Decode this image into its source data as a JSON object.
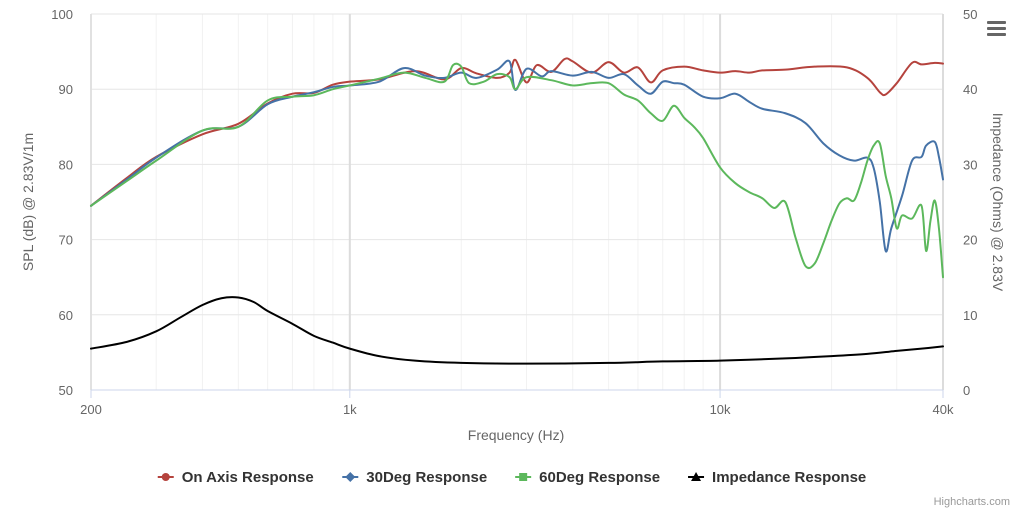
{
  "chart_data": {
    "type": "line",
    "xlabel": "Frequency (Hz)",
    "ylabel": "SPL (dB) @ 2.83V/1m",
    "y2label": "Impedance (Ohms) @ 2.83V",
    "x_scale": "log",
    "xlim": [
      200,
      40000
    ],
    "ylim": [
      50,
      100
    ],
    "y2lim": [
      0,
      50
    ],
    "x_ticks": [
      200,
      1000,
      10000,
      40000
    ],
    "x_tick_labels": [
      "200",
      "1k",
      "10k",
      "40k"
    ],
    "y_ticks": [
      50,
      60,
      70,
      80,
      90,
      100
    ],
    "y2_ticks": [
      0,
      10,
      20,
      30,
      40,
      50
    ],
    "grid": true,
    "legend_position": "bottom-center",
    "credits": "Highcharts.com",
    "series": [
      {
        "name": "On Axis Response",
        "color": "#b5433d",
        "marker": "circle",
        "axis": "left",
        "points": [
          [
            200,
            74.5
          ],
          [
            250,
            78.2
          ],
          [
            300,
            81
          ],
          [
            400,
            84
          ],
          [
            500,
            85.4
          ],
          [
            600,
            88.1
          ],
          [
            700,
            89.4
          ],
          [
            800,
            89.5
          ],
          [
            900,
            90.6
          ],
          [
            1000,
            91
          ],
          [
            1200,
            91.3
          ],
          [
            1500,
            92.4
          ],
          [
            1800,
            91.3
          ],
          [
            2000,
            92.8
          ],
          [
            2200,
            92.1
          ],
          [
            2500,
            91.5
          ],
          [
            2700,
            92.2
          ],
          [
            2800,
            93.9
          ],
          [
            3000,
            90.9
          ],
          [
            3200,
            93.2
          ],
          [
            3500,
            92.3
          ],
          [
            3800,
            94
          ],
          [
            4000,
            93.7
          ],
          [
            4500,
            92.2
          ],
          [
            5000,
            93.6
          ],
          [
            5500,
            92.2
          ],
          [
            6000,
            92.9
          ],
          [
            6500,
            90.9
          ],
          [
            7000,
            92.5
          ],
          [
            8000,
            93.0
          ],
          [
            9000,
            92.5
          ],
          [
            10000,
            92.2
          ],
          [
            11000,
            92.4
          ],
          [
            12000,
            92.2
          ],
          [
            13000,
            92.5
          ],
          [
            15000,
            92.6
          ],
          [
            18000,
            93.0
          ],
          [
            22000,
            92.9
          ],
          [
            25000,
            91.5
          ],
          [
            27000,
            89.6
          ],
          [
            28000,
            89.3
          ],
          [
            30000,
            90.8
          ],
          [
            33000,
            93.5
          ],
          [
            35000,
            93.3
          ],
          [
            38000,
            93.5
          ],
          [
            40000,
            93.4
          ]
        ]
      },
      {
        "name": "30Deg Response",
        "color": "#4572a7",
        "marker": "diamond",
        "axis": "left",
        "points": [
          [
            200,
            74.5
          ],
          [
            250,
            78
          ],
          [
            300,
            80.9
          ],
          [
            400,
            84.5
          ],
          [
            500,
            85
          ],
          [
            600,
            88
          ],
          [
            700,
            89
          ],
          [
            800,
            89.6
          ],
          [
            900,
            90.3
          ],
          [
            1000,
            90.5
          ],
          [
            1200,
            91
          ],
          [
            1400,
            92.8
          ],
          [
            1600,
            91.8
          ],
          [
            1800,
            91.5
          ],
          [
            2000,
            92.2
          ],
          [
            2200,
            91.5
          ],
          [
            2500,
            92.6
          ],
          [
            2700,
            93.7
          ],
          [
            2800,
            89.9
          ],
          [
            3000,
            92.7
          ],
          [
            3300,
            91.7
          ],
          [
            3500,
            92.4
          ],
          [
            4000,
            91.8
          ],
          [
            4500,
            92.3
          ],
          [
            5000,
            91.5
          ],
          [
            5500,
            92.0
          ],
          [
            6000,
            90.5
          ],
          [
            6500,
            89.4
          ],
          [
            7000,
            91.0
          ],
          [
            7500,
            90.8
          ],
          [
            8000,
            90.6
          ],
          [
            9000,
            89.0
          ],
          [
            10000,
            88.8
          ],
          [
            11000,
            89.4
          ],
          [
            12000,
            88.3
          ],
          [
            13000,
            87.4
          ],
          [
            15000,
            86.8
          ],
          [
            17000,
            85.5
          ],
          [
            19000,
            82.8
          ],
          [
            21000,
            81.2
          ],
          [
            23000,
            80.5
          ],
          [
            25000,
            80.9
          ],
          [
            26000,
            79.5
          ],
          [
            27000,
            75.0
          ],
          [
            28000,
            68.5
          ],
          [
            29000,
            71.5
          ],
          [
            31000,
            75.8
          ],
          [
            33000,
            80.5
          ],
          [
            35000,
            81.0
          ],
          [
            36000,
            82.5
          ],
          [
            38000,
            83.0
          ],
          [
            39000,
            81.0
          ],
          [
            40000,
            78.0
          ]
        ]
      },
      {
        "name": "60Deg Response",
        "color": "#5cb85c",
        "marker": "square",
        "axis": "left",
        "points": [
          [
            200,
            74.5
          ],
          [
            250,
            77.8
          ],
          [
            300,
            80.5
          ],
          [
            400,
            84.5
          ],
          [
            500,
            85
          ],
          [
            600,
            88.5
          ],
          [
            700,
            89
          ],
          [
            800,
            89.2
          ],
          [
            900,
            90
          ],
          [
            1000,
            90.5
          ],
          [
            1200,
            91.4
          ],
          [
            1400,
            92.2
          ],
          [
            1600,
            91.5
          ],
          [
            1800,
            91.0
          ],
          [
            1900,
            93.2
          ],
          [
            2000,
            93.0
          ],
          [
            2100,
            90.8
          ],
          [
            2300,
            91.0
          ],
          [
            2500,
            92.0
          ],
          [
            2700,
            91.6
          ],
          [
            2800,
            90.0
          ],
          [
            3000,
            91.6
          ],
          [
            3500,
            91.2
          ],
          [
            4000,
            90.5
          ],
          [
            4500,
            90.8
          ],
          [
            5000,
            90.8
          ],
          [
            5500,
            89.3
          ],
          [
            6000,
            88.5
          ],
          [
            6500,
            86.8
          ],
          [
            7000,
            85.8
          ],
          [
            7500,
            87.8
          ],
          [
            8000,
            86.2
          ],
          [
            8500,
            85.0
          ],
          [
            9000,
            83.5
          ],
          [
            10000,
            79.6
          ],
          [
            11000,
            77.5
          ],
          [
            12000,
            76.3
          ],
          [
            13000,
            75.5
          ],
          [
            14000,
            74.2
          ],
          [
            15000,
            75.0
          ],
          [
            16000,
            70.2
          ],
          [
            17000,
            66.5
          ],
          [
            18000,
            66.8
          ],
          [
            19000,
            69.5
          ],
          [
            20000,
            72.5
          ],
          [
            21000,
            74.8
          ],
          [
            22000,
            75.5
          ],
          [
            23000,
            75.2
          ],
          [
            24000,
            77.5
          ],
          [
            25000,
            80.5
          ],
          [
            26000,
            82.5
          ],
          [
            27000,
            82.8
          ],
          [
            28000,
            78.5
          ],
          [
            29000,
            75.5
          ],
          [
            30000,
            71.5
          ],
          [
            31000,
            73.2
          ],
          [
            33000,
            72.8
          ],
          [
            35000,
            74.5
          ],
          [
            36000,
            68.5
          ],
          [
            37000,
            72.5
          ],
          [
            38000,
            75.2
          ],
          [
            39000,
            71.5
          ],
          [
            40000,
            65.0
          ]
        ]
      },
      {
        "name": "Impedance Response",
        "color": "#000000",
        "marker": "triangle",
        "axis": "right",
        "points": [
          [
            200,
            5.5
          ],
          [
            250,
            6.4
          ],
          [
            300,
            7.8
          ],
          [
            350,
            9.7
          ],
          [
            400,
            11.3
          ],
          [
            450,
            12.2
          ],
          [
            500,
            12.3
          ],
          [
            550,
            11.7
          ],
          [
            600,
            10.5
          ],
          [
            700,
            8.8
          ],
          [
            800,
            7.2
          ],
          [
            900,
            6.3
          ],
          [
            1000,
            5.5
          ],
          [
            1200,
            4.5
          ],
          [
            1500,
            3.9
          ],
          [
            2000,
            3.6
          ],
          [
            3000,
            3.5
          ],
          [
            5000,
            3.6
          ],
          [
            7000,
            3.8
          ],
          [
            10000,
            3.9
          ],
          [
            15000,
            4.2
          ],
          [
            20000,
            4.5
          ],
          [
            25000,
            4.8
          ],
          [
            30000,
            5.2
          ],
          [
            35000,
            5.5
          ],
          [
            40000,
            5.8
          ]
        ]
      }
    ]
  },
  "menu": {
    "icon": "hamburger-icon"
  }
}
